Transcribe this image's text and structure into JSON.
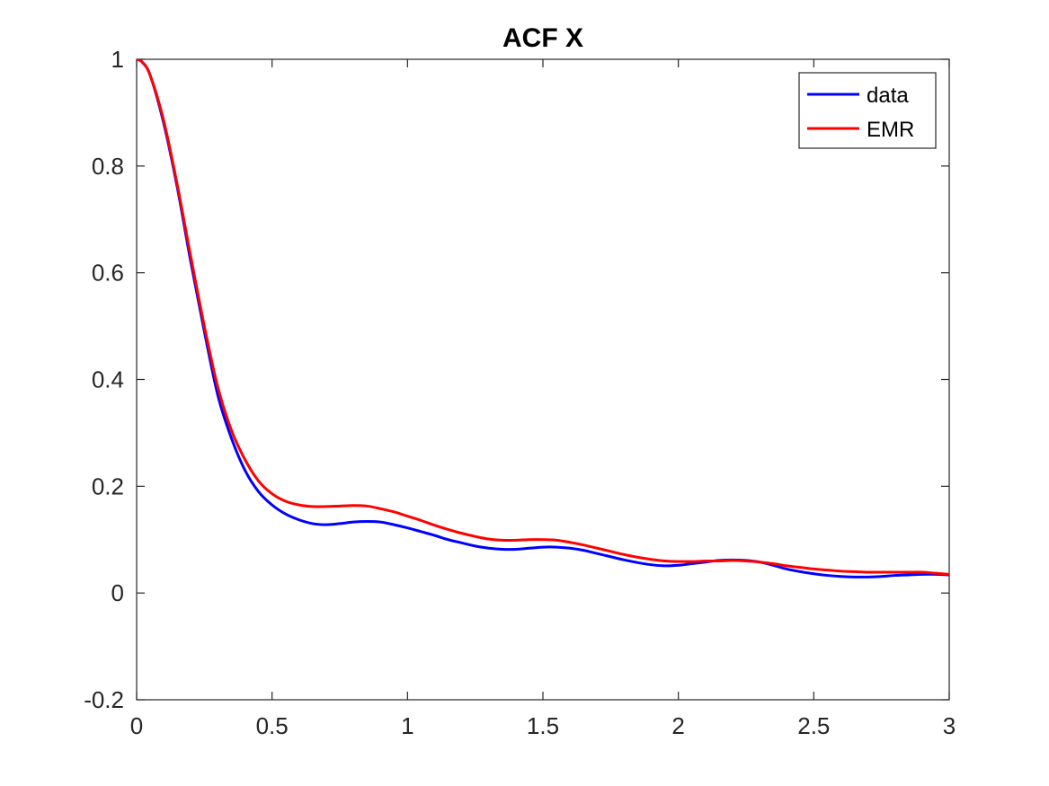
{
  "chart_data": {
    "type": "line",
    "title": "ACF X",
    "xlabel": "",
    "ylabel": "",
    "xlim": [
      0,
      3
    ],
    "ylim": [
      -0.2,
      1
    ],
    "x_ticks": [
      0,
      0.5,
      1,
      1.5,
      2,
      2.5,
      3
    ],
    "x_tick_labels": [
      "0",
      "0.5",
      "1",
      "1.5",
      "2",
      "2.5",
      "3"
    ],
    "y_ticks": [
      -0.2,
      0,
      0.2,
      0.4,
      0.6,
      0.8,
      1
    ],
    "y_tick_labels": [
      "-0.2",
      "0",
      "0.2",
      "0.4",
      "0.6",
      "0.8",
      "1"
    ],
    "grid": false,
    "legend_position": "top-right",
    "series": [
      {
        "name": "data",
        "color": "#0000ff",
        "points": [
          [
            0,
            1.0
          ],
          [
            0.02,
            0.995
          ],
          [
            0.05,
            0.97
          ],
          [
            0.1,
            0.88
          ],
          [
            0.15,
            0.76
          ],
          [
            0.2,
            0.62
          ],
          [
            0.25,
            0.49
          ],
          [
            0.3,
            0.37
          ],
          [
            0.35,
            0.29
          ],
          [
            0.4,
            0.23
          ],
          [
            0.45,
            0.19
          ],
          [
            0.5,
            0.165
          ],
          [
            0.55,
            0.148
          ],
          [
            0.6,
            0.137
          ],
          [
            0.65,
            0.13
          ],
          [
            0.7,
            0.128
          ],
          [
            0.75,
            0.13
          ],
          [
            0.8,
            0.133
          ],
          [
            0.85,
            0.134
          ],
          [
            0.9,
            0.133
          ],
          [
            0.95,
            0.128
          ],
          [
            1.0,
            0.122
          ],
          [
            1.05,
            0.115
          ],
          [
            1.1,
            0.108
          ],
          [
            1.15,
            0.1
          ],
          [
            1.2,
            0.094
          ],
          [
            1.25,
            0.088
          ],
          [
            1.3,
            0.084
          ],
          [
            1.35,
            0.082
          ],
          [
            1.4,
            0.082
          ],
          [
            1.45,
            0.084
          ],
          [
            1.5,
            0.086
          ],
          [
            1.55,
            0.086
          ],
          [
            1.6,
            0.084
          ],
          [
            1.65,
            0.08
          ],
          [
            1.7,
            0.074
          ],
          [
            1.75,
            0.068
          ],
          [
            1.8,
            0.062
          ],
          [
            1.85,
            0.057
          ],
          [
            1.9,
            0.053
          ],
          [
            1.95,
            0.051
          ],
          [
            2.0,
            0.052
          ],
          [
            2.05,
            0.055
          ],
          [
            2.1,
            0.058
          ],
          [
            2.15,
            0.061
          ],
          [
            2.2,
            0.062
          ],
          [
            2.25,
            0.061
          ],
          [
            2.3,
            0.058
          ],
          [
            2.35,
            0.052
          ],
          [
            2.4,
            0.045
          ],
          [
            2.45,
            0.04
          ],
          [
            2.5,
            0.036
          ],
          [
            2.55,
            0.033
          ],
          [
            2.6,
            0.031
          ],
          [
            2.65,
            0.03
          ],
          [
            2.7,
            0.03
          ],
          [
            2.75,
            0.031
          ],
          [
            2.8,
            0.033
          ],
          [
            2.85,
            0.034
          ],
          [
            2.9,
            0.035
          ],
          [
            2.95,
            0.035
          ],
          [
            3.0,
            0.034
          ]
        ]
      },
      {
        "name": "EMR",
        "color": "#ff0000",
        "points": [
          [
            0,
            1.0
          ],
          [
            0.02,
            0.995
          ],
          [
            0.05,
            0.97
          ],
          [
            0.1,
            0.885
          ],
          [
            0.15,
            0.765
          ],
          [
            0.2,
            0.63
          ],
          [
            0.25,
            0.5
          ],
          [
            0.3,
            0.385
          ],
          [
            0.35,
            0.305
          ],
          [
            0.4,
            0.25
          ],
          [
            0.45,
            0.21
          ],
          [
            0.5,
            0.186
          ],
          [
            0.55,
            0.172
          ],
          [
            0.6,
            0.165
          ],
          [
            0.65,
            0.162
          ],
          [
            0.7,
            0.162
          ],
          [
            0.75,
            0.163
          ],
          [
            0.8,
            0.164
          ],
          [
            0.85,
            0.163
          ],
          [
            0.9,
            0.158
          ],
          [
            0.95,
            0.152
          ],
          [
            1.0,
            0.144
          ],
          [
            1.05,
            0.136
          ],
          [
            1.1,
            0.127
          ],
          [
            1.15,
            0.119
          ],
          [
            1.2,
            0.112
          ],
          [
            1.25,
            0.106
          ],
          [
            1.3,
            0.101
          ],
          [
            1.35,
            0.099
          ],
          [
            1.4,
            0.099
          ],
          [
            1.45,
            0.1
          ],
          [
            1.5,
            0.1
          ],
          [
            1.55,
            0.099
          ],
          [
            1.6,
            0.095
          ],
          [
            1.65,
            0.09
          ],
          [
            1.7,
            0.084
          ],
          [
            1.75,
            0.078
          ],
          [
            1.8,
            0.072
          ],
          [
            1.85,
            0.067
          ],
          [
            1.9,
            0.063
          ],
          [
            1.95,
            0.06
          ],
          [
            2.0,
            0.059
          ],
          [
            2.05,
            0.059
          ],
          [
            2.1,
            0.06
          ],
          [
            2.15,
            0.06
          ],
          [
            2.2,
            0.061
          ],
          [
            2.25,
            0.06
          ],
          [
            2.3,
            0.058
          ],
          [
            2.35,
            0.055
          ],
          [
            2.4,
            0.051
          ],
          [
            2.45,
            0.048
          ],
          [
            2.5,
            0.045
          ],
          [
            2.55,
            0.043
          ],
          [
            2.6,
            0.041
          ],
          [
            2.65,
            0.04
          ],
          [
            2.7,
            0.039
          ],
          [
            2.75,
            0.039
          ],
          [
            2.8,
            0.039
          ],
          [
            2.85,
            0.039
          ],
          [
            2.9,
            0.039
          ],
          [
            2.95,
            0.037
          ],
          [
            3.0,
            0.035
          ]
        ]
      }
    ]
  }
}
